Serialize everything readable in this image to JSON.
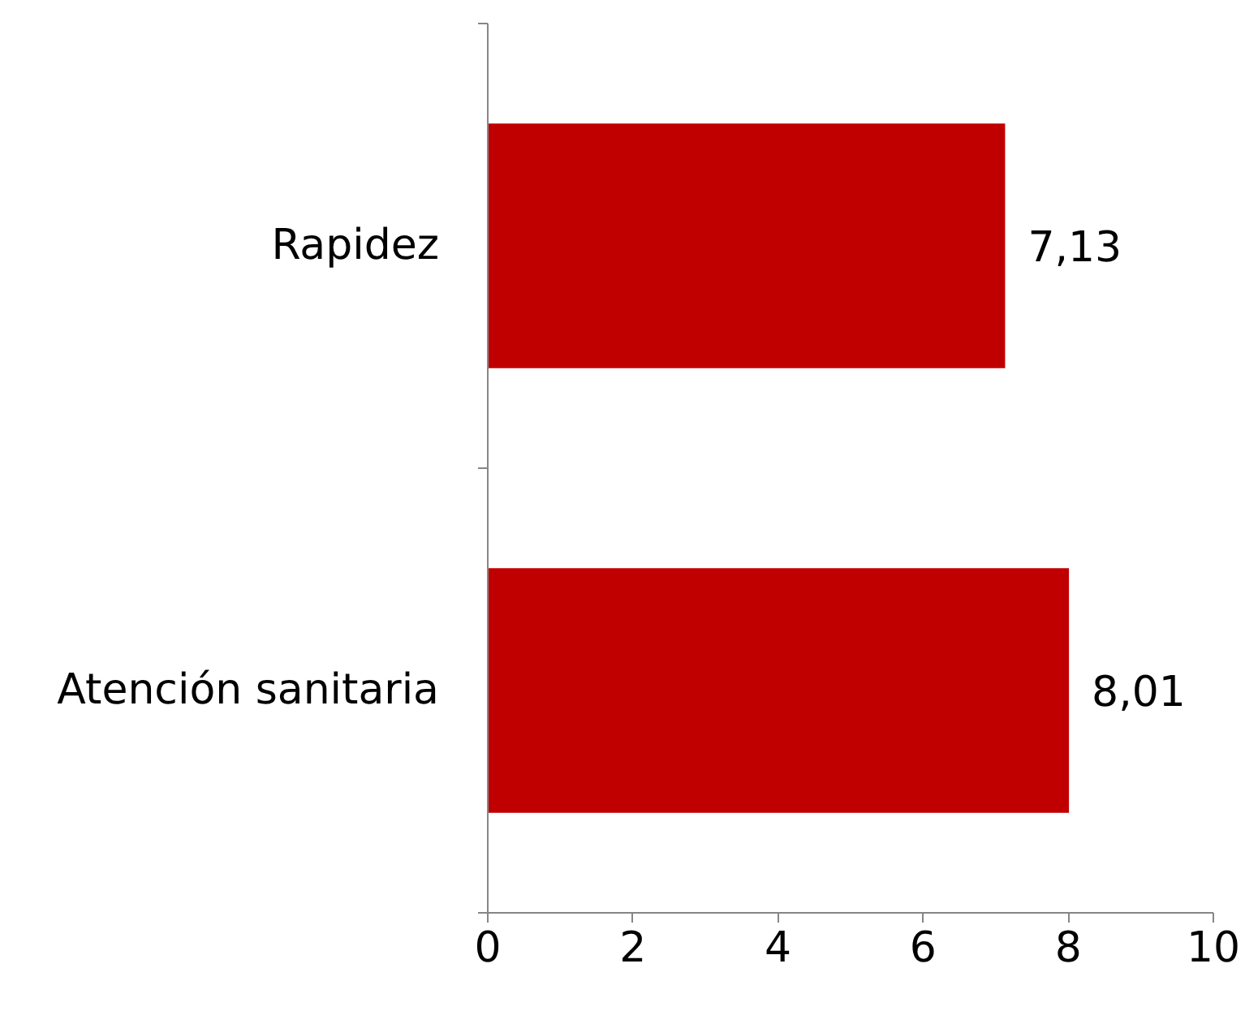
{
  "chart_data": {
    "type": "bar",
    "orientation": "horizontal",
    "categories": [
      "Rapidez",
      "Atención sanitaria"
    ],
    "values": [
      7.13,
      8.01
    ],
    "color": "#c00000",
    "value_labels": [
      "7,13",
      "8,01"
    ],
    "xlim": [
      0,
      10
    ],
    "xticks": [
      0,
      2,
      4,
      6,
      8,
      10
    ],
    "grid": false
  }
}
